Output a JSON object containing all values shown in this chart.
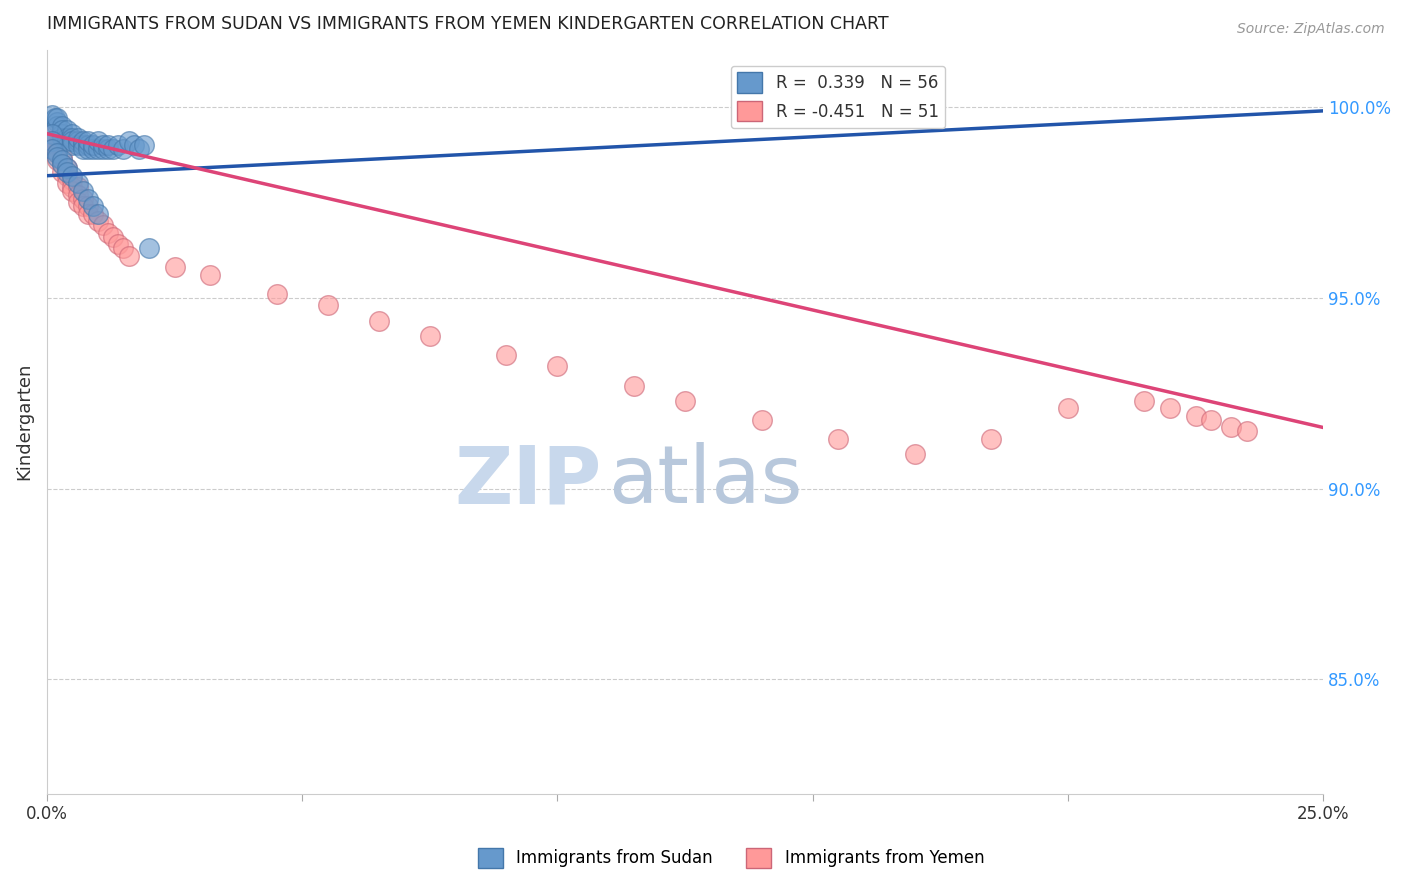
{
  "title": "IMMIGRANTS FROM SUDAN VS IMMIGRANTS FROM YEMEN KINDERGARTEN CORRELATION CHART",
  "source": "Source: ZipAtlas.com",
  "ylabel": "Kindergarten",
  "ytick_labels": [
    "100.0%",
    "95.0%",
    "90.0%",
    "85.0%"
  ],
  "ytick_values": [
    1.0,
    0.95,
    0.9,
    0.85
  ],
  "xlim": [
    0.0,
    0.25
  ],
  "ylim": [
    0.82,
    1.015
  ],
  "sudan_R": 0.339,
  "sudan_N": 56,
  "yemen_R": -0.451,
  "yemen_N": 51,
  "sudan_color": "#6699CC",
  "sudan_edge": "#4477AA",
  "yemen_color": "#FF9999",
  "yemen_edge": "#CC6677",
  "blue_line_color": "#2255AA",
  "pink_line_color": "#DD4477",
  "watermark_zip": "ZIP",
  "watermark_atlas": "atlas",
  "watermark_color_zip": "#C8D8EC",
  "watermark_color_atlas": "#B8C8DC",
  "sudan_x": [
    0.001,
    0.0015,
    0.002,
    0.002,
    0.002,
    0.003,
    0.003,
    0.003,
    0.003,
    0.004,
    0.004,
    0.004,
    0.005,
    0.005,
    0.005,
    0.005,
    0.006,
    0.006,
    0.006,
    0.007,
    0.007,
    0.007,
    0.008,
    0.008,
    0.008,
    0.009,
    0.009,
    0.01,
    0.01,
    0.011,
    0.011,
    0.012,
    0.012,
    0.013,
    0.014,
    0.015,
    0.016,
    0.017,
    0.018,
    0.019,
    0.001,
    0.001,
    0.001,
    0.002,
    0.002,
    0.003,
    0.003,
    0.004,
    0.004,
    0.005,
    0.006,
    0.007,
    0.008,
    0.009,
    0.01,
    0.02
  ],
  "sudan_y": [
    0.998,
    0.997,
    0.996,
    0.995,
    0.997,
    0.995,
    0.993,
    0.994,
    0.992,
    0.994,
    0.992,
    0.991,
    0.993,
    0.992,
    0.99,
    0.991,
    0.991,
    0.99,
    0.992,
    0.99,
    0.991,
    0.989,
    0.99,
    0.989,
    0.991,
    0.989,
    0.99,
    0.989,
    0.991,
    0.989,
    0.99,
    0.989,
    0.99,
    0.989,
    0.99,
    0.989,
    0.991,
    0.99,
    0.989,
    0.99,
    0.993,
    0.991,
    0.989,
    0.988,
    0.987,
    0.986,
    0.985,
    0.984,
    0.983,
    0.982,
    0.98,
    0.978,
    0.976,
    0.974,
    0.972,
    0.963
  ],
  "yemen_x": [
    0.001,
    0.001,
    0.001,
    0.002,
    0.002,
    0.002,
    0.003,
    0.003,
    0.003,
    0.004,
    0.004,
    0.004,
    0.005,
    0.005,
    0.005,
    0.006,
    0.006,
    0.006,
    0.007,
    0.007,
    0.008,
    0.008,
    0.009,
    0.01,
    0.011,
    0.012,
    0.013,
    0.014,
    0.015,
    0.016,
    0.025,
    0.032,
    0.045,
    0.055,
    0.065,
    0.075,
    0.09,
    0.1,
    0.115,
    0.125,
    0.14,
    0.155,
    0.17,
    0.185,
    0.2,
    0.215,
    0.22,
    0.225,
    0.228,
    0.232,
    0.235
  ],
  "yemen_y": [
    0.993,
    0.991,
    0.989,
    0.99,
    0.988,
    0.986,
    0.987,
    0.985,
    0.983,
    0.984,
    0.982,
    0.98,
    0.981,
    0.979,
    0.978,
    0.979,
    0.977,
    0.975,
    0.976,
    0.974,
    0.974,
    0.972,
    0.972,
    0.97,
    0.969,
    0.967,
    0.966,
    0.964,
    0.963,
    0.961,
    0.958,
    0.956,
    0.951,
    0.948,
    0.944,
    0.94,
    0.935,
    0.932,
    0.927,
    0.923,
    0.918,
    0.913,
    0.909,
    0.913,
    0.921,
    0.923,
    0.921,
    0.919,
    0.918,
    0.916,
    0.915
  ],
  "sudan_line_x": [
    0.0,
    0.25
  ],
  "sudan_line_y": [
    0.982,
    0.999
  ],
  "yemen_line_x": [
    0.0,
    0.25
  ],
  "yemen_line_y": [
    0.993,
    0.916
  ]
}
